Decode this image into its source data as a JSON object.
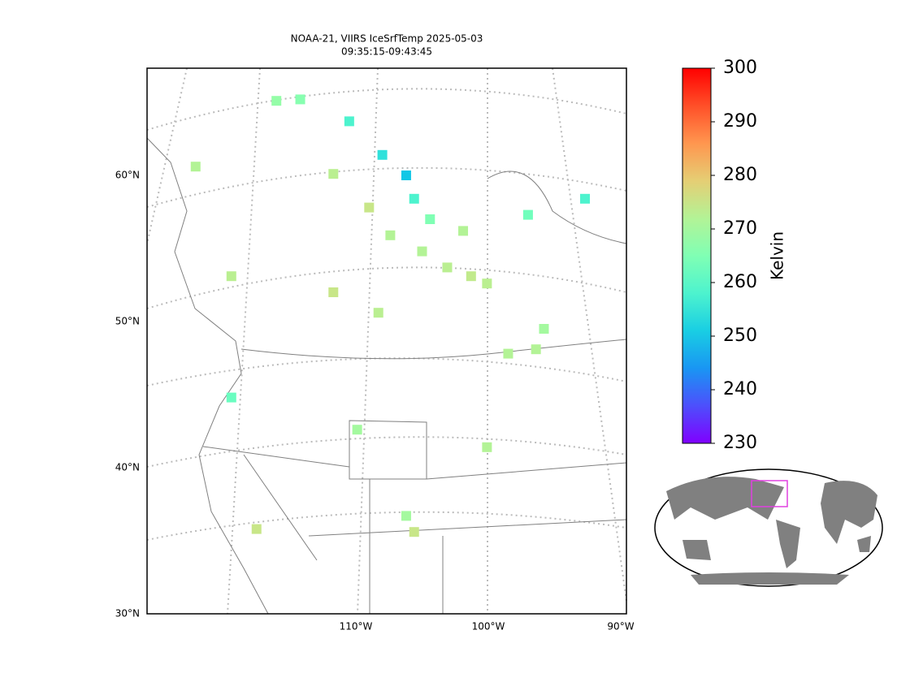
{
  "map": {
    "title": [
      "NOAA-21, VIIRS IceSrfTemp 2025-05-03",
      "09:35:15-09:43:45"
    ],
    "lat_ticks": [
      {
        "value": 60,
        "label": "60°N"
      },
      {
        "value": 50,
        "label": "50°N"
      },
      {
        "value": 40,
        "label": "40°N"
      },
      {
        "value": 30,
        "label": "30°N"
      }
    ],
    "lon_ticks": [
      {
        "value": -110,
        "label": "110°W"
      },
      {
        "value": -100,
        "label": "100°W"
      },
      {
        "value": -90,
        "label": "90°W"
      }
    ],
    "colorbar": {
      "label": "Kelvin",
      "colormap": "rainbow",
      "lim": [
        230,
        300
      ],
      "ticks": [
        230,
        240,
        250,
        260,
        270,
        280,
        290,
        300
      ]
    },
    "points": [
      {
        "lon": -116.0,
        "lat": 65.1,
        "value": 268
      },
      {
        "lon": -114.2,
        "lat": 65.2,
        "value": 266
      },
      {
        "lon": -110.5,
        "lat": 63.7,
        "value": 258
      },
      {
        "lon": -108.0,
        "lat": 61.4,
        "value": 254
      },
      {
        "lon": -106.2,
        "lat": 60.0,
        "value": 250
      },
      {
        "lon": -105.6,
        "lat": 58.4,
        "value": 258
      },
      {
        "lon": -104.4,
        "lat": 57.0,
        "value": 265
      },
      {
        "lon": -107.4,
        "lat": 55.9,
        "value": 272
      },
      {
        "lon": -105.0,
        "lat": 54.8,
        "value": 272
      },
      {
        "lon": -103.1,
        "lat": 53.7,
        "value": 273
      },
      {
        "lon": -101.3,
        "lat": 53.1,
        "value": 274
      },
      {
        "lon": -100.1,
        "lat": 52.6,
        "value": 273
      },
      {
        "lon": -101.9,
        "lat": 56.2,
        "value": 272
      },
      {
        "lon": -92.7,
        "lat": 58.4,
        "value": 258
      },
      {
        "lon": -97.0,
        "lat": 57.3,
        "value": 263
      },
      {
        "lon": -96.4,
        "lat": 48.1,
        "value": 272
      },
      {
        "lon": -95.8,
        "lat": 49.5,
        "value": 270
      },
      {
        "lon": -122.1,
        "lat": 60.6,
        "value": 272
      },
      {
        "lon": -111.7,
        "lat": 60.1,
        "value": 273
      },
      {
        "lon": -109.0,
        "lat": 57.8,
        "value": 275
      },
      {
        "lon": -119.4,
        "lat": 53.1,
        "value": 273
      },
      {
        "lon": -109.9,
        "lat": 42.6,
        "value": 270
      },
      {
        "lon": -106.2,
        "lat": 36.7,
        "value": 270
      },
      {
        "lon": -105.6,
        "lat": 35.6,
        "value": 275
      },
      {
        "lon": -117.5,
        "lat": 35.8,
        "value": 275
      },
      {
        "lon": -119.4,
        "lat": 44.8,
        "value": 262
      },
      {
        "lon": -98.5,
        "lat": 47.8,
        "value": 272
      },
      {
        "lon": -100.1,
        "lat": 41.4,
        "value": 272
      },
      {
        "lon": -108.3,
        "lat": 50.6,
        "value": 273
      },
      {
        "lon": -111.7,
        "lat": 52.0,
        "value": 275
      }
    ]
  }
}
